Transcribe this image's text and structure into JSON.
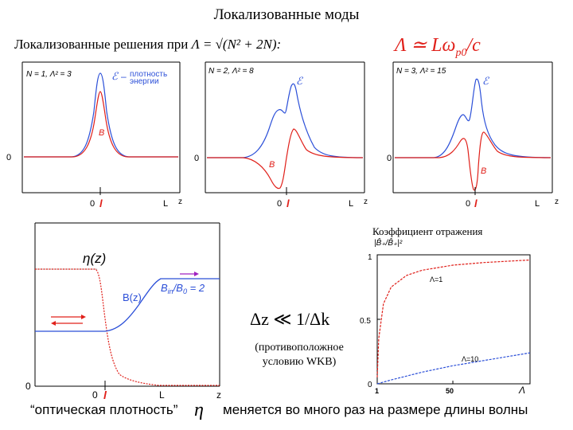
{
  "slide": {
    "title": "Локализованные моды",
    "header_text": "Локализованные решения при",
    "header_formula": "Λ = √(N² + 2N):",
    "relation": "Λ ≃ Lω",
    "relation_sub": "p0",
    "relation_tail": "/c",
    "reflection_caption": "Коэффициент отражения",
    "wkb_condition": "Δz ≪ 1/Δk",
    "wkb_note_line1": "(противоположное",
    "wkb_note_line2": "условию WKB)",
    "bottom_text_1": "“оптическая плотность”",
    "bottom_eta": "η",
    "bottom_text_2": "меняется во много раз на размере длины волны"
  },
  "panels": [
    {
      "label": "N = 1,  Λ² = 3",
      "legend_e": "ℰ",
      "legend_dash": "–",
      "legend_text_1": "плотность",
      "legend_text_2": "энергии",
      "b_label": "B",
      "zero": "0",
      "x0": "0",
      "xl": "l",
      "xL": "L",
      "xz": "z"
    },
    {
      "label": "N = 2,  Λ² = 8",
      "legend_e": "ℰ",
      "b_label": "B",
      "zero": "0",
      "x0": "0",
      "xl": "l",
      "xL": "L",
      "xz": "z"
    },
    {
      "label": "N = 3,  Λ² = 15",
      "legend_e": "ℰ",
      "b_label": "B",
      "zero": "0",
      "x0": "0",
      "xl": "l",
      "xL": "L",
      "xz": "z"
    }
  ],
  "profile_panel": {
    "eta_label": "η(z)",
    "b_label": "B(z)",
    "ratio_label": "B",
    "ratio_sub": "in",
    "ratio_tail": "/B",
    "ratio_sub2": "0",
    "ratio_val": " = 2",
    "zero": "0",
    "x0": "0",
    "xl": "l",
    "xL": "L",
    "xz": "z"
  },
  "reflection_chart": {
    "ylabel": "|B̂₊/B̂₊|²",
    "y_ticks": [
      "1",
      "0.5",
      "0"
    ],
    "x_ticks": [
      "1",
      "50"
    ],
    "x_label": "Λ",
    "curve1_label": "Λ=1",
    "curve2_label": "Λ=10"
  },
  "chart_data": {
    "type": "line",
    "title": "",
    "xlabel": "Λ",
    "ylabel": "|B̂₊/B̂₊|²",
    "xlim": [
      1,
      100
    ],
    "ylim": [
      0,
      1
    ],
    "series": [
      {
        "name": "Λ=1",
        "x": [
          1,
          2,
          5,
          10,
          20,
          30,
          50,
          70,
          100
        ],
        "y": [
          0.05,
          0.35,
          0.62,
          0.75,
          0.84,
          0.88,
          0.92,
          0.94,
          0.96
        ]
      },
      {
        "name": "Λ=10",
        "x": [
          1,
          10,
          20,
          30,
          50,
          70,
          100
        ],
        "y": [
          0.0,
          0.03,
          0.06,
          0.09,
          0.14,
          0.18,
          0.24
        ]
      }
    ]
  },
  "colors": {
    "blue": "#2b4fd8",
    "red": "#e0201a",
    "axis": "#000000",
    "arrow_magenta": "#a020c0"
  }
}
